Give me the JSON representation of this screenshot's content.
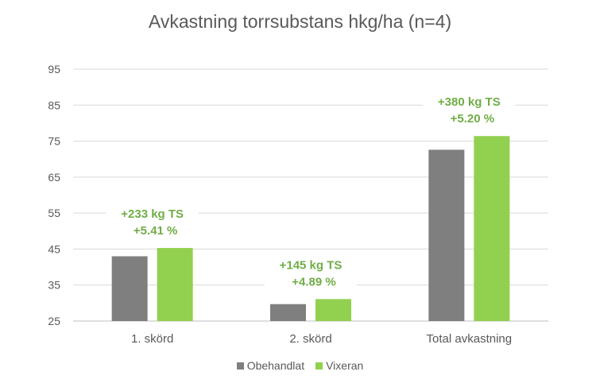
{
  "chart_data": {
    "type": "bar",
    "title": "Avkastning torrsubstans hkg/ha (n=4)",
    "categories": [
      "1. skörd",
      "2. skörd",
      "Total avkastning"
    ],
    "series": [
      {
        "name": "Obehandlat",
        "color": "#7f7f7f",
        "values": [
          43.0,
          29.7,
          72.6
        ]
      },
      {
        "name": "Vixeran",
        "color": "#92d050",
        "values": [
          45.3,
          31.1,
          76.4
        ]
      }
    ],
    "ylim": [
      25,
      95
    ],
    "yticks": [
      25,
      35,
      45,
      55,
      65,
      75,
      85,
      95
    ],
    "grid": true,
    "legend_position": "bottom",
    "annotations": [
      {
        "category": "1. skörd",
        "lines": [
          "+233 kg TS",
          "+5.41 %"
        ],
        "color": "#70ad47"
      },
      {
        "category": "2. skörd",
        "lines": [
          "+145 kg TS",
          "+4.89 %"
        ],
        "color": "#70ad47"
      },
      {
        "category": "Total avkastning",
        "lines": [
          "+380 kg TS",
          "+5.20 %"
        ],
        "color": "#70ad47"
      }
    ]
  }
}
